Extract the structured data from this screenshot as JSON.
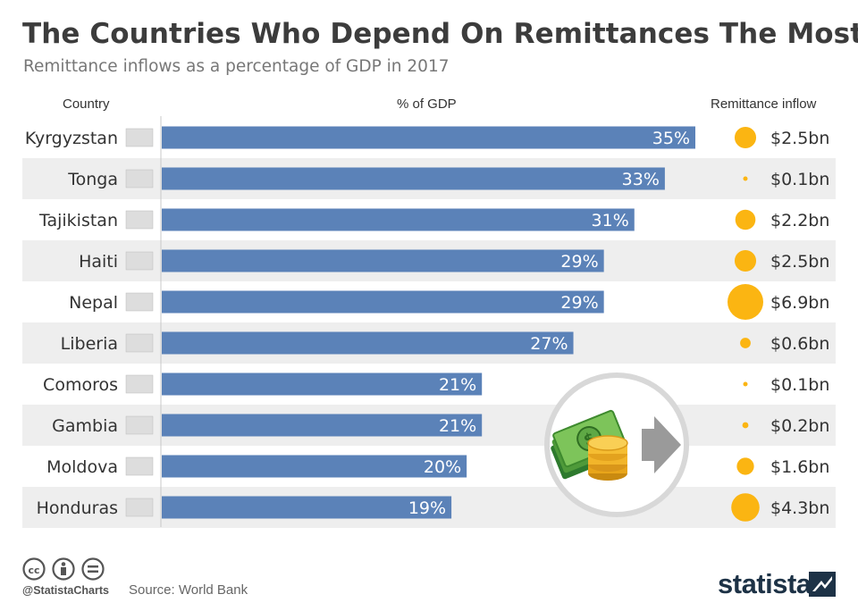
{
  "title": "The Countries Who Depend On Remittances The Most",
  "subtitle": "Remittance inflows as a percentage of GDP in 2017",
  "headers": {
    "country": "Country",
    "gdp": "% of GDP",
    "inflow": "Remittance inflow"
  },
  "footer": {
    "handle": "@StatistaCharts",
    "source": "Source: World Bank",
    "brand": "statista"
  },
  "colors": {
    "bar": "#5b82b8",
    "bubble": "#fbb512",
    "stripe": "#eeeeee"
  },
  "icons": [
    "cc-icon",
    "attribution-icon",
    "no-derivatives-icon",
    "money-transfer-illustration",
    "statista-logo-mark"
  ],
  "chart_data": {
    "type": "bar",
    "orientation": "horizontal",
    "categories": [
      "Kyrgyzstan",
      "Tonga",
      "Tajikistan",
      "Haiti",
      "Nepal",
      "Liberia",
      "Comoros",
      "Gambia",
      "Moldova",
      "Honduras"
    ],
    "values": [
      35,
      33,
      31,
      29,
      29,
      27,
      21,
      21,
      20,
      19
    ],
    "value_labels": [
      "35%",
      "33%",
      "31%",
      "29%",
      "29%",
      "27%",
      "21%",
      "21%",
      "20%",
      "19%"
    ],
    "xlabel": "% of GDP",
    "inflow_values": [
      2.5,
      0.1,
      2.2,
      2.5,
      6.9,
      0.6,
      0.1,
      0.2,
      1.6,
      4.3
    ],
    "inflow_labels": [
      "$2.5bn",
      "$0.1bn",
      "$2.2bn",
      "$2.5bn",
      "$6.9bn",
      "$0.6bn",
      "$0.1bn",
      "$0.2bn",
      "$1.6bn",
      "$4.3bn"
    ],
    "inflow_label": "Remittance inflow",
    "grid": false
  }
}
